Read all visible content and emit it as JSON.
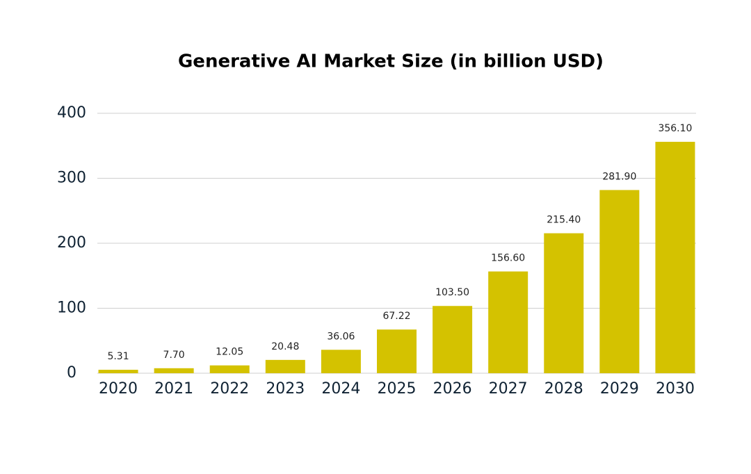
{
  "chart_data": {
    "type": "bar",
    "title": "Generative AI Market Size (in billion USD)",
    "categories": [
      "2020",
      "2021",
      "2022",
      "2023",
      "2024",
      "2025",
      "2026",
      "2027",
      "2028",
      "2029",
      "2030"
    ],
    "values": [
      5.31,
      7.7,
      12.05,
      20.48,
      36.06,
      67.22,
      103.5,
      156.6,
      215.4,
      281.9,
      356.1
    ],
    "value_labels": [
      "5.31",
      "7.70",
      "12.05",
      "20.48",
      "36.06",
      "67.22",
      "103.50",
      "156.60",
      "215.40",
      "281.90",
      "356.10"
    ],
    "color": "#d4c200",
    "ylim": [
      0,
      400
    ],
    "yticks": [
      0,
      100,
      200,
      300,
      400
    ],
    "grid": true
  }
}
